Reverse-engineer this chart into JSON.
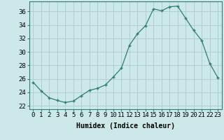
{
  "x": [
    0,
    1,
    2,
    3,
    4,
    5,
    6,
    7,
    8,
    9,
    10,
    11,
    12,
    13,
    14,
    15,
    16,
    17,
    18,
    19,
    20,
    21,
    22,
    23
  ],
  "y": [
    25.5,
    24.2,
    23.2,
    22.8,
    22.5,
    22.7,
    23.5,
    24.3,
    24.6,
    25.1,
    26.3,
    27.6,
    31.0,
    32.7,
    33.9,
    36.4,
    36.1,
    36.7,
    36.8,
    35.0,
    33.2,
    31.7,
    28.3,
    26.2
  ],
  "xlim": [
    -0.5,
    23.5
  ],
  "ylim": [
    21.5,
    37.5
  ],
  "yticks": [
    22,
    24,
    26,
    28,
    30,
    32,
    34,
    36
  ],
  "xticks": [
    0,
    1,
    2,
    3,
    4,
    5,
    6,
    7,
    8,
    9,
    10,
    11,
    12,
    13,
    14,
    15,
    16,
    17,
    18,
    19,
    20,
    21,
    22,
    23
  ],
  "xlabel": "Humidex (Indice chaleur)",
  "line_color": "#2e7d6e",
  "marker": "+",
  "bg_color": "#cce8e8",
  "grid_color": "#b0d0d0",
  "xlabel_fontsize": 7,
  "tick_fontsize": 6.5
}
